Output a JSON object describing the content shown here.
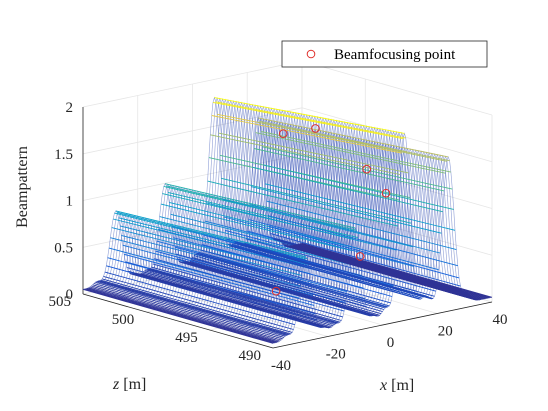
{
  "chart_data": {
    "type": "surface",
    "view": "3d-mesh",
    "ylabel_z": "Beampattern",
    "xlabel": {
      "var": "x",
      "unit": "[m]"
    },
    "zlabel": {
      "var": "z",
      "unit": "[m]"
    },
    "x_ticks": [
      "-40",
      "-20",
      "0",
      "20",
      "40"
    ],
    "x_tick_values": [
      -40,
      -20,
      0,
      20,
      40
    ],
    "z_ticks": [
      "490",
      "495",
      "500",
      "505"
    ],
    "z_tick_values": [
      490,
      495,
      500,
      505
    ],
    "v_ticks": [
      "0",
      "0.5",
      "1",
      "1.5",
      "2"
    ],
    "v_tick_values": [
      0,
      0.5,
      1,
      1.5,
      2
    ],
    "xlim": [
      -40,
      40
    ],
    "zlim": [
      490,
      505
    ],
    "vlim": [
      0,
      2
    ],
    "grid": true,
    "colormap": "parula",
    "ridges": [
      {
        "x": -28,
        "peak": 0.85,
        "width": 3.0
      },
      {
        "x": -10,
        "peak": 1.05,
        "width": 3.0
      },
      {
        "x": 8,
        "peak": 1.95,
        "width": 3.0
      },
      {
        "x": 24,
        "peak": 1.6,
        "width": 3.0
      }
    ],
    "beamfocusing_points": [
      {
        "x": -25,
        "z": 493,
        "value": 0.4
      },
      {
        "x": 8,
        "z": 493.5,
        "value": 0.55
      },
      {
        "x": 10,
        "z": 500,
        "value": 1.6
      },
      {
        "x": 22,
        "z": 496,
        "value": 1.3
      },
      {
        "x": 36,
        "z": 497.5,
        "value": 0.9
      },
      {
        "x": 31,
        "z": 502,
        "value": 1.45
      }
    ],
    "legend": {
      "placement": "top-right",
      "entries": [
        {
          "label": "Beamfocusing point",
          "marker": "circle",
          "color": "#e0302c"
        }
      ]
    },
    "colors": {
      "marker": "#e0302c",
      "axis": "#262626",
      "grid": "#e6e6e6"
    }
  }
}
